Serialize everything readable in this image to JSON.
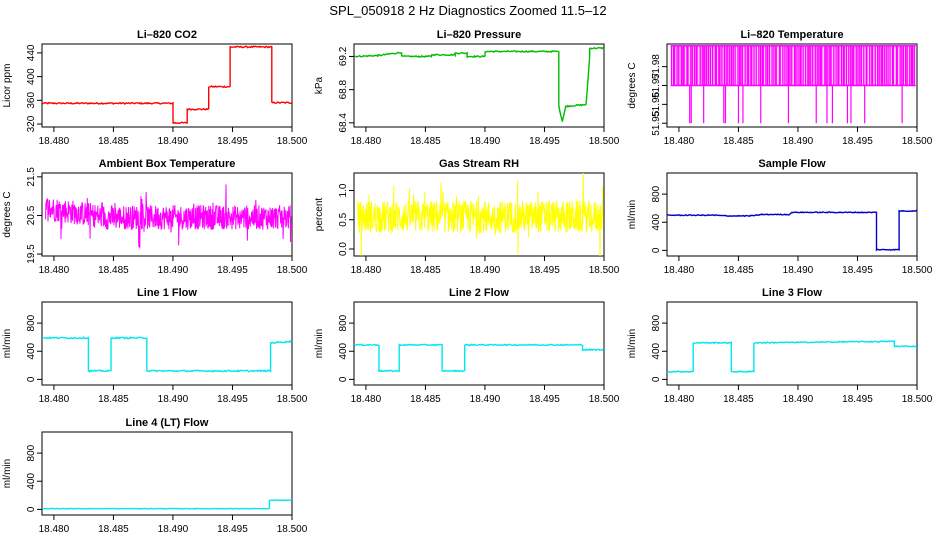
{
  "page_title": "SPL_050918  2 Hz Diagnostics Zoomed 11.5–12",
  "chart_data": [
    {
      "id": "co2",
      "type": "line",
      "title": "Li–820 CO2",
      "ylabel": "Licor ppm",
      "color": "#ff0000",
      "xlim": [
        18.479,
        18.5
      ],
      "ylim": [
        315,
        455
      ],
      "xticks": [
        "18.480",
        "18.485",
        "18.490",
        "18.495",
        "18.500"
      ],
      "yticks": [
        "320",
        "360",
        "400",
        "440"
      ],
      "noise": 1.2,
      "series": [
        {
          "x": [
            18.479,
            18.49,
            18.49,
            18.4912,
            18.4912,
            18.493,
            18.493,
            18.4948,
            18.4948,
            18.4983,
            18.4983,
            18.5
          ],
          "values": [
            355,
            355,
            322,
            322,
            345,
            345,
            383,
            383,
            450,
            450,
            356,
            356
          ]
        }
      ]
    },
    {
      "id": "pressure",
      "type": "line",
      "title": "Li–820 Pressure",
      "ylabel": "kPa",
      "color": "#00bb00",
      "xlim": [
        18.479,
        18.5
      ],
      "ylim": [
        68.35,
        69.35
      ],
      "xticks": [
        "18.480",
        "18.485",
        "18.490",
        "18.495",
        "18.500"
      ],
      "yticks": [
        "68.4",
        "68.8",
        "69.2"
      ],
      "noise": 0.008,
      "series": [
        {
          "x": [
            18.479,
            18.481,
            18.482,
            18.483,
            18.483,
            18.4855,
            18.4855,
            18.4875,
            18.4875,
            18.4885,
            18.4885,
            18.49,
            18.49,
            18.4962,
            18.4962,
            18.4965,
            18.4965,
            18.4968,
            18.4968,
            18.4985,
            18.4985,
            18.4988,
            18.4988,
            18.5
          ],
          "values": [
            69.2,
            69.21,
            69.23,
            69.25,
            69.2,
            69.2,
            69.22,
            69.22,
            69.24,
            69.24,
            69.2,
            69.2,
            69.26,
            69.26,
            68.6,
            68.42,
            68.42,
            68.6,
            68.6,
            68.62,
            68.62,
            69.2,
            69.3,
            69.3
          ]
        }
      ]
    },
    {
      "id": "temperature",
      "type": "spikes",
      "title": "Li–820 Temperature",
      "ylabel": "degrees C",
      "color": "#ff00ff",
      "xlim": [
        18.479,
        18.5
      ],
      "ylim": [
        51.948,
        51.992
      ],
      "xticks": [
        "18.480",
        "18.485",
        "18.490",
        "18.495",
        "18.500"
      ],
      "yticks": [
        "51.95",
        "51.96",
        "51.97",
        "51.98"
      ],
      "base": 51.97,
      "high": 51.991,
      "low": 51.95,
      "count": 130
    },
    {
      "id": "ambient",
      "type": "noise",
      "title": "Ambient Box Temperature",
      "ylabel": "degrees C",
      "color": "#ff00ff",
      "xlim": [
        18.479,
        18.5
      ],
      "ylim": [
        19.45,
        21.6
      ],
      "xticks": [
        "18.480",
        "18.485",
        "18.490",
        "18.495",
        "18.500"
      ],
      "yticks": [
        "19.5",
        "20.5",
        "21.5"
      ],
      "center": 20.45,
      "amp": 0.32,
      "start": 20.7,
      "count": 700
    },
    {
      "id": "rh",
      "type": "noise",
      "title": "Gas Stream RH",
      "ylabel": "percent",
      "color": "#ffff00",
      "xlim": [
        18.479,
        18.5
      ],
      "ylim": [
        -0.12,
        1.3
      ],
      "xticks": [
        "18.480",
        "18.485",
        "18.490",
        "18.495",
        "18.500"
      ],
      "yticks": [
        "0.0",
        "0.5",
        "1.0"
      ],
      "center": 0.55,
      "amp": 0.28,
      "start": 0.55,
      "count": 700
    },
    {
      "id": "sample_flow",
      "type": "line",
      "title": "Sample Flow",
      "ylabel": "ml/min",
      "color": "#0000cc",
      "xlim": [
        18.479,
        18.5
      ],
      "ylim": [
        -80,
        1100
      ],
      "xticks": [
        "18.480",
        "18.485",
        "18.490",
        "18.495",
        "18.500"
      ],
      "yticks": [
        "0",
        "400",
        "800"
      ],
      "noise": 6,
      "series": [
        {
          "x": [
            18.479,
            18.483,
            18.484,
            18.486,
            18.487,
            18.4893,
            18.4895,
            18.4966,
            18.4966,
            18.4985,
            18.4985,
            18.5
          ],
          "values": [
            500,
            500,
            490,
            490,
            510,
            510,
            540,
            540,
            10,
            10,
            560,
            560
          ]
        }
      ]
    },
    {
      "id": "line1",
      "type": "line",
      "title": "Line 1 Flow",
      "ylabel": "ml/min",
      "color": "#00e5ee",
      "xlim": [
        18.479,
        18.5
      ],
      "ylim": [
        -80,
        1100
      ],
      "xticks": [
        "18.480",
        "18.485",
        "18.490",
        "18.495",
        "18.500"
      ],
      "yticks": [
        "0",
        "400",
        "800"
      ],
      "noise": 10,
      "series": [
        {
          "x": [
            18.479,
            18.4829,
            18.4829,
            18.4848,
            18.4848,
            18.4878,
            18.4878,
            18.4982,
            18.4982,
            18.5
          ],
          "values": [
            590,
            590,
            120,
            120,
            590,
            590,
            120,
            120,
            520,
            540
          ]
        }
      ]
    },
    {
      "id": "line2",
      "type": "line",
      "title": "Line 2 Flow",
      "ylabel": "ml/min",
      "color": "#00e5ee",
      "xlim": [
        18.479,
        18.5
      ],
      "ylim": [
        -80,
        1100
      ],
      "xticks": [
        "18.480",
        "18.485",
        "18.490",
        "18.495",
        "18.500"
      ],
      "yticks": [
        "0",
        "400",
        "800"
      ],
      "noise": 8,
      "series": [
        {
          "x": [
            18.479,
            18.4811,
            18.4811,
            18.4828,
            18.4828,
            18.4864,
            18.4864,
            18.4883,
            18.4883,
            18.4982,
            18.4982,
            18.5
          ],
          "values": [
            490,
            490,
            120,
            120,
            490,
            490,
            120,
            120,
            490,
            490,
            420,
            420
          ]
        }
      ]
    },
    {
      "id": "line3",
      "type": "line",
      "title": "Line 3 Flow",
      "ylabel": "ml/min",
      "color": "#00e5ee",
      "xlim": [
        18.479,
        18.5
      ],
      "ylim": [
        -80,
        1100
      ],
      "xticks": [
        "18.480",
        "18.485",
        "18.490",
        "18.495",
        "18.500"
      ],
      "yticks": [
        "0",
        "400",
        "800"
      ],
      "noise": 8,
      "series": [
        {
          "x": [
            18.479,
            18.4812,
            18.4812,
            18.4844,
            18.4844,
            18.4863,
            18.4863,
            18.4981,
            18.4981,
            18.5
          ],
          "values": [
            110,
            110,
            520,
            520,
            110,
            110,
            520,
            540,
            470,
            470
          ]
        }
      ]
    },
    {
      "id": "line4",
      "type": "line",
      "title": "Line 4 (LT) Flow",
      "ylabel": "ml/min",
      "color": "#00e5ee",
      "xlim": [
        18.479,
        18.5
      ],
      "ylim": [
        -80,
        1100
      ],
      "xticks": [
        "18.480",
        "18.485",
        "18.490",
        "18.495",
        "18.500"
      ],
      "yticks": [
        "0",
        "400",
        "800"
      ],
      "noise": 3,
      "series": [
        {
          "x": [
            18.479,
            18.4981,
            18.4981,
            18.5
          ],
          "values": [
            10,
            10,
            130,
            130
          ]
        }
      ]
    }
  ]
}
